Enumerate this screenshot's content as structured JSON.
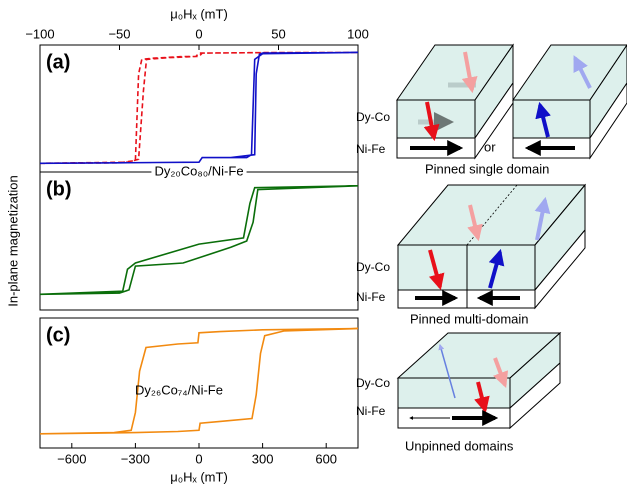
{
  "chart_data": [
    {
      "type": "line",
      "panel_label": "(a)",
      "xlabel": "μ₀Hₓ (mT)",
      "xaxis": "top",
      "xlim": [
        -100,
        100
      ],
      "xticks": [
        {
          "value": -100,
          "label": "−100"
        },
        {
          "value": -50,
          "label": "−50"
        },
        0,
        50,
        100
      ],
      "ylim": [
        -1.1,
        1.1
      ],
      "series": [
        {
          "color": "#e8101a",
          "dash": true,
          "x": [
            -100,
            -50,
            -40,
            -38,
            -36,
            -30,
            -10,
            0,
            2,
            50,
            100,
            50,
            0,
            -2,
            -20,
            -33,
            -35,
            -38,
            -45,
            -100
          ],
          "values": [
            -0.95,
            -0.94,
            -0.9,
            0.6,
            0.85,
            0.87,
            0.9,
            0.9,
            0.96,
            0.97,
            0.97,
            0.97,
            0.96,
            0.9,
            0.88,
            0.85,
            0.3,
            -0.88,
            -0.93,
            -0.95
          ]
        },
        {
          "color": "#1010c8",
          "dash": false,
          "x": [
            -100,
            -50,
            0,
            2,
            30,
            33,
            35,
            40,
            100,
            40,
            38,
            36,
            35,
            20,
            2,
            0,
            -50,
            -100
          ],
          "values": [
            -0.95,
            -0.94,
            -0.93,
            -0.85,
            -0.85,
            -0.8,
            0.85,
            0.95,
            0.97,
            0.96,
            0.94,
            0.6,
            -0.8,
            -0.85,
            -0.85,
            -0.93,
            -0.94,
            -0.95
          ]
        }
      ]
    },
    {
      "type": "line",
      "panel_label": "(b)",
      "annotation": "Dy₂₀Co₈₀/Ni-Fe",
      "ylabel": "In-plane magnetization",
      "xlim": [
        -100,
        100
      ],
      "ylim": [
        -1.1,
        1.1
      ],
      "series": [
        {
          "color": "#0a6e0a",
          "dash": false,
          "x": [
            -100,
            -50,
            -44,
            -40,
            -10,
            20,
            30,
            34,
            37,
            100,
            35,
            32,
            28,
            0,
            -40,
            -45,
            -48,
            -100
          ],
          "values": [
            -0.85,
            -0.83,
            -0.78,
            -0.4,
            -0.35,
            -0.1,
            0.0,
            0.3,
            0.82,
            0.88,
            0.85,
            0.6,
            0.05,
            -0.05,
            -0.35,
            -0.45,
            -0.8,
            -0.85
          ]
        }
      ]
    },
    {
      "type": "line",
      "panel_label": "(c)",
      "annotation": "Dy₂₆Co₇₄/Ni-Fe",
      "xlabel": "μ₀Hₓ (mT)",
      "xaxis": "bottom",
      "xlim": [
        -750,
        750
      ],
      "xticks": [
        {
          "value": -600,
          "label": "−600"
        },
        {
          "value": -300,
          "label": "−300"
        },
        0,
        300,
        600
      ],
      "ylim": [
        -1.1,
        1.1
      ],
      "series": [
        {
          "color": "#f28a10",
          "dash": false,
          "x": [
            750,
            300,
            100,
            0,
            -5,
            -100,
            -250,
            -280,
            -300,
            -320,
            -400,
            -750,
            -300,
            -100,
            0,
            5,
            100,
            250,
            270,
            290,
            310,
            400,
            750
          ],
          "values": [
            0.92,
            0.9,
            0.87,
            0.85,
            0.68,
            0.66,
            0.6,
            0.2,
            -0.5,
            -0.8,
            -0.84,
            -0.86,
            -0.84,
            -0.82,
            -0.8,
            -0.68,
            -0.65,
            -0.6,
            -0.2,
            0.5,
            0.8,
            0.88,
            0.92
          ]
        }
      ]
    }
  ],
  "diagrams": [
    {
      "top_layer": "Dy-Co",
      "bottom_layer": "Ni-Fe",
      "connector": "or",
      "caption": "Pinned single domain"
    },
    {
      "top_layer": "Dy-Co",
      "bottom_layer": "Ni-Fe",
      "caption": "Pinned multi-domain"
    },
    {
      "top_layer": "Dy-Co",
      "bottom_layer": "Ni-Fe",
      "caption": "Unpinned domains"
    }
  ]
}
